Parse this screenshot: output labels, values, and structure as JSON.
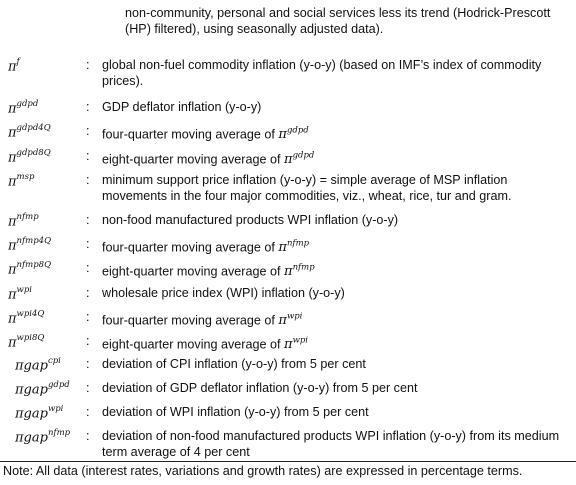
{
  "intro_text": "non-community, personal and social services less its trend (Hodrick-Prescott (HP) filtered), using seasonally adjusted data).",
  "separator": ":",
  "definitions": [
    {
      "base": "π",
      "sup": "f",
      "desc": "global non-fuel commodity inflation (y-o-y) (based on IMF’s index of commodity prices)."
    },
    {
      "base": "π",
      "sup": "gdpd",
      "desc": "GDP deflator inflation (y-o-y)"
    },
    {
      "base": "π",
      "sup": "gdpd4Q",
      "desc": "four-quarter moving average of ",
      "inline_base": "π",
      "inline_sup": "gdpd"
    },
    {
      "base": "π",
      "sup": "gdpd8Q",
      "desc": "eight-quarter moving average of ",
      "inline_base": "π",
      "inline_sup": "gdpd"
    },
    {
      "base": "π",
      "sup": "msp",
      "desc": "minimum support price inflation (y-o-y) = simple average of MSP inflation movements in the four major commodities, viz., wheat, rice, tur and gram."
    },
    {
      "base": "π",
      "sup": "nfmp",
      "desc": "non-food manufactured products WPI inflation (y-o-y)"
    },
    {
      "base": "π",
      "sup": "nfmp4Q",
      "desc": "four-quarter moving average of ",
      "inline_base": "π",
      "inline_sup": "nfmp"
    },
    {
      "base": "π",
      "sup": "nfmp8Q",
      "desc": "eight-quarter moving average of ",
      "inline_base": "π",
      "inline_sup": "nfmp"
    },
    {
      "base": "π",
      "sup": "wpi",
      "desc": "wholesale price index (WPI) inflation (y-o-y)"
    },
    {
      "base": "π",
      "sup": "wpi4Q",
      "desc": "four-quarter moving average of ",
      "inline_base": "π",
      "inline_sup": "wpi"
    },
    {
      "base": "π",
      "sup": "wpi8Q",
      "desc": "eight-quarter moving average of ",
      "inline_base": "π",
      "inline_sup": "wpi"
    },
    {
      "base": "πgap",
      "sup": "cpi",
      "desc": "deviation of CPI inflation (y-o-y) from 5 per cent"
    },
    {
      "base": "πgap",
      "sup": "gdpd",
      "desc": "deviation of GDP deflator inflation (y-o-y) from 5 per cent"
    },
    {
      "base": "πgap",
      "sup": "wpi",
      "desc": "deviation of WPI inflation (y-o-y) from 5 per cent"
    },
    {
      "base": "πgap",
      "sup": "nfmp",
      "desc": "deviation of non-food manufactured products WPI inflation (y-o-y) from its medium term average of 4 per cent"
    }
  ],
  "note": "Note: All data (interest rates, variations and growth rates) are expressed in percentage terms."
}
